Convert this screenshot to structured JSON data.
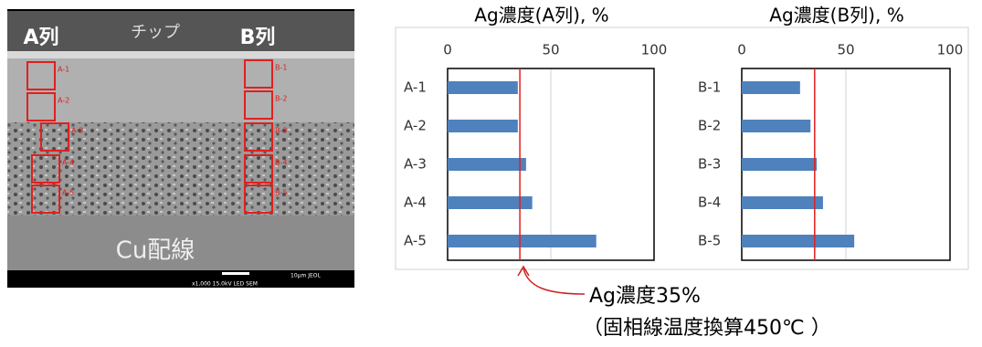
{
  "chart_data": [
    {
      "type": "bar",
      "orientation": "horizontal",
      "title": "Ag濃度(A列), %",
      "categories": [
        "A-1",
        "A-2",
        "A-3",
        "A-4",
        "A-5"
      ],
      "values": [
        34,
        34,
        38,
        41,
        72
      ],
      "color": "#4f81bd",
      "xlim": [
        0,
        100
      ],
      "xticks": [
        0,
        50,
        100
      ],
      "grid": true,
      "ref_line": 35,
      "ref_color": "#e02020"
    },
    {
      "type": "bar",
      "orientation": "horizontal",
      "title": "Ag濃度(B列), %",
      "categories": [
        "B-1",
        "B-2",
        "B-3",
        "B-4",
        "B-5"
      ],
      "values": [
        28,
        33,
        36,
        39,
        54
      ],
      "color": "#4f81bd",
      "xlim": [
        0,
        100
      ],
      "xticks": [
        0,
        50,
        100
      ],
      "grid": true,
      "ref_line": 35,
      "ref_color": "#e02020"
    }
  ],
  "image": {
    "label_a": "A列",
    "label_chip": "チップ",
    "label_b": "B列",
    "label_cu": "Cu配線",
    "boxes_a": [
      "A-1",
      "A-2",
      "A-3",
      "A-4",
      "A-5"
    ],
    "boxes_b": [
      "B-1",
      "B-2",
      "B-3",
      "B-4",
      "B-5"
    ],
    "scale_text": "10μm  JEOL",
    "info_text": "x1,000    15.0kV LED    SEM"
  },
  "annotation": {
    "line1": "Ag濃度35%",
    "line2": "（固相線温度換算450℃ ）"
  }
}
